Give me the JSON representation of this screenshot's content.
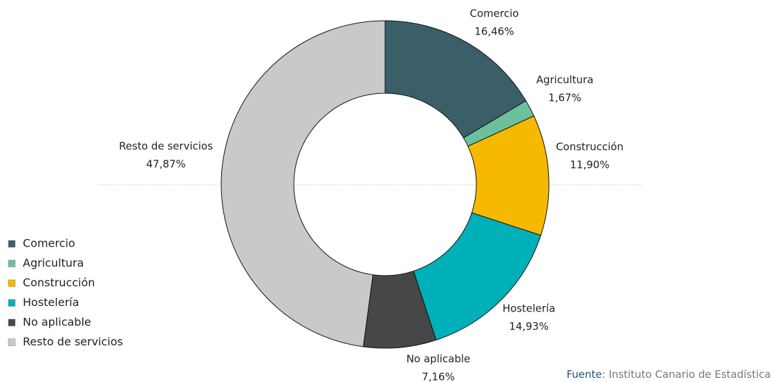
{
  "chart_data": {
    "type": "donut",
    "categories": [
      "Comercio",
      "Agricultura",
      "Construcción",
      "Hostelería",
      "No aplicable",
      "Resto de servicios"
    ],
    "values": [
      16.46,
      1.67,
      11.9,
      14.93,
      7.16,
      47.87
    ],
    "value_labels": [
      "16,46%",
      "1,67%",
      "11,90%",
      "14,93%",
      "7,16%",
      "47,87%"
    ],
    "colors": [
      "#3b5f68",
      "#6cc09b",
      "#f7b800",
      "#00b0b8",
      "#474747",
      "#c9c9c9"
    ],
    "legend": "left",
    "source_label": "Fuente",
    "source": ": Instituto Canario de Estadística"
  }
}
